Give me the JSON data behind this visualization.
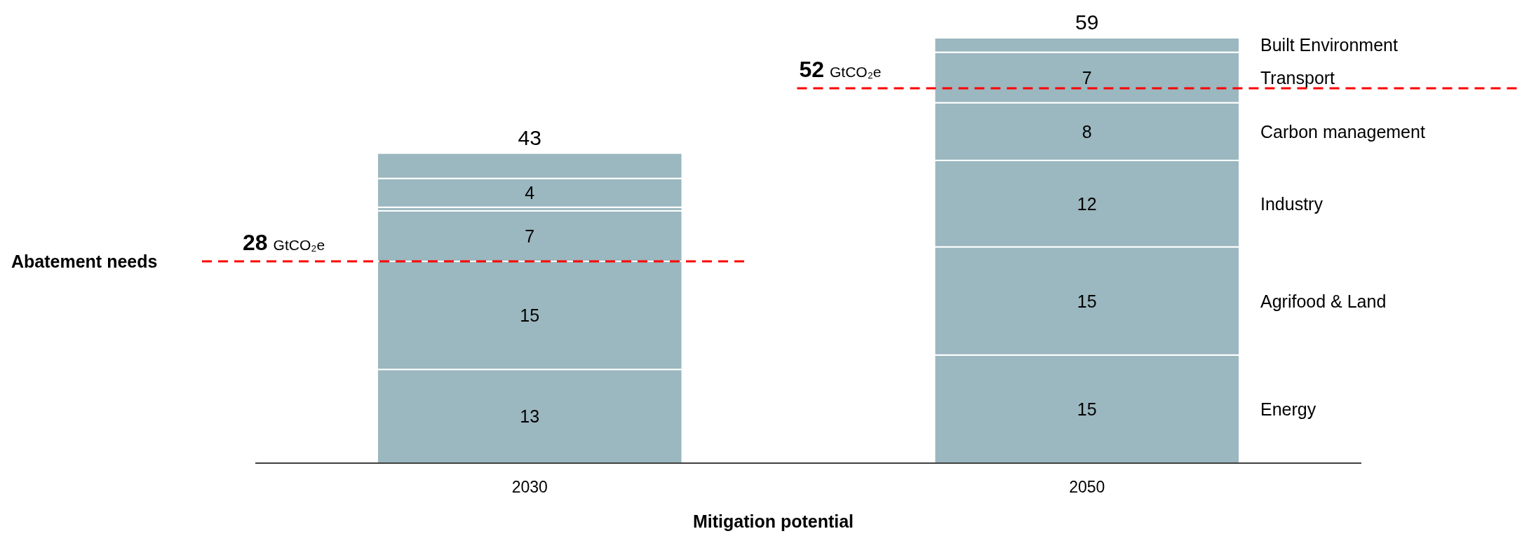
{
  "chart_data": {
    "type": "bar",
    "stacked": true,
    "xlabel": "Mitigation potential",
    "categories": [
      "2030",
      "2050"
    ],
    "series": [
      {
        "name": "Energy",
        "color": "#9bb7bf",
        "values": [
          13,
          15
        ],
        "value_labels": [
          "13",
          "15"
        ]
      },
      {
        "name": "Agrifood & Land",
        "color": "#9bb7bf",
        "values": [
          15,
          15
        ],
        "value_labels": [
          "15",
          "15"
        ]
      },
      {
        "name": "Industry",
        "color": "#9bb7bf",
        "values": [
          7,
          12
        ],
        "value_labels": [
          "7",
          "12"
        ]
      },
      {
        "name": "Carbon management",
        "color": "#9bb7bf",
        "values": [
          0.5,
          8
        ],
        "value_labels": [
          null,
          "8"
        ]
      },
      {
        "name": "Transport",
        "color": "#9bb7bf",
        "values": [
          4,
          7
        ],
        "value_labels": [
          "4",
          "7"
        ]
      },
      {
        "name": "Built Environment",
        "color": "#9bb7bf",
        "values": [
          3.5,
          2
        ],
        "value_labels": [
          null,
          null
        ]
      }
    ],
    "totals": [
      "43",
      "59"
    ],
    "ref_lines": [
      {
        "axis": "y",
        "value": 28,
        "label": "28 GtCO₂e",
        "color": "#ff0000",
        "line_style": "dashed"
      },
      {
        "axis": "y",
        "value": 52,
        "label": "52 GtCO₂e",
        "color": "#ff0000",
        "line_style": "dashed"
      }
    ],
    "annotations": [
      "Abatement needs"
    ],
    "legend": "right"
  }
}
